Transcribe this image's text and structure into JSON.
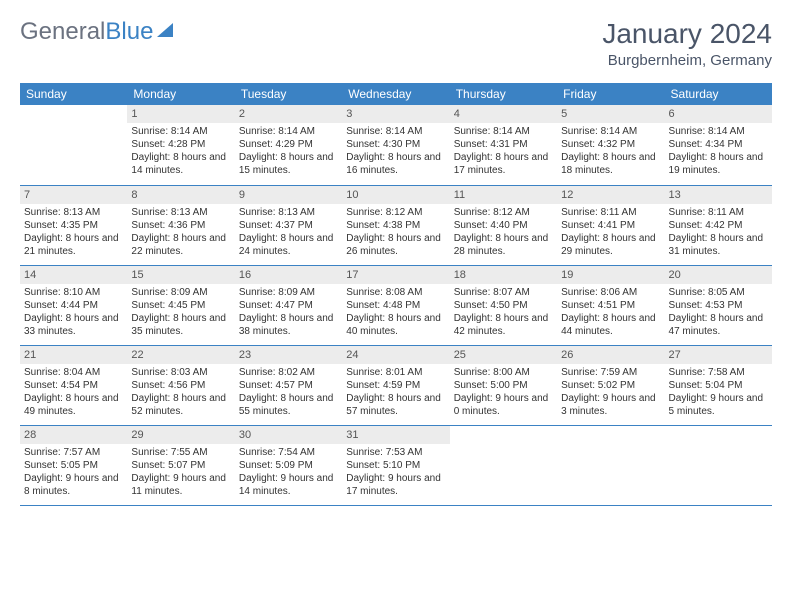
{
  "logo": {
    "word1": "General",
    "word2": "Blue"
  },
  "title": "January 2024",
  "subtitle": "Burgbernheim, Germany",
  "headers": [
    "Sunday",
    "Monday",
    "Tuesday",
    "Wednesday",
    "Thursday",
    "Friday",
    "Saturday"
  ],
  "colors": {
    "accent": "#3b82c4",
    "daynum_bg": "#ececec",
    "text": "#333333"
  },
  "weeks": [
    [
      {
        "n": "",
        "sr": "",
        "ss": "",
        "dl": ""
      },
      {
        "n": "1",
        "sr": "Sunrise: 8:14 AM",
        "ss": "Sunset: 4:28 PM",
        "dl": "Daylight: 8 hours and 14 minutes."
      },
      {
        "n": "2",
        "sr": "Sunrise: 8:14 AM",
        "ss": "Sunset: 4:29 PM",
        "dl": "Daylight: 8 hours and 15 minutes."
      },
      {
        "n": "3",
        "sr": "Sunrise: 8:14 AM",
        "ss": "Sunset: 4:30 PM",
        "dl": "Daylight: 8 hours and 16 minutes."
      },
      {
        "n": "4",
        "sr": "Sunrise: 8:14 AM",
        "ss": "Sunset: 4:31 PM",
        "dl": "Daylight: 8 hours and 17 minutes."
      },
      {
        "n": "5",
        "sr": "Sunrise: 8:14 AM",
        "ss": "Sunset: 4:32 PM",
        "dl": "Daylight: 8 hours and 18 minutes."
      },
      {
        "n": "6",
        "sr": "Sunrise: 8:14 AM",
        "ss": "Sunset: 4:34 PM",
        "dl": "Daylight: 8 hours and 19 minutes."
      }
    ],
    [
      {
        "n": "7",
        "sr": "Sunrise: 8:13 AM",
        "ss": "Sunset: 4:35 PM",
        "dl": "Daylight: 8 hours and 21 minutes."
      },
      {
        "n": "8",
        "sr": "Sunrise: 8:13 AM",
        "ss": "Sunset: 4:36 PM",
        "dl": "Daylight: 8 hours and 22 minutes."
      },
      {
        "n": "9",
        "sr": "Sunrise: 8:13 AM",
        "ss": "Sunset: 4:37 PM",
        "dl": "Daylight: 8 hours and 24 minutes."
      },
      {
        "n": "10",
        "sr": "Sunrise: 8:12 AM",
        "ss": "Sunset: 4:38 PM",
        "dl": "Daylight: 8 hours and 26 minutes."
      },
      {
        "n": "11",
        "sr": "Sunrise: 8:12 AM",
        "ss": "Sunset: 4:40 PM",
        "dl": "Daylight: 8 hours and 28 minutes."
      },
      {
        "n": "12",
        "sr": "Sunrise: 8:11 AM",
        "ss": "Sunset: 4:41 PM",
        "dl": "Daylight: 8 hours and 29 minutes."
      },
      {
        "n": "13",
        "sr": "Sunrise: 8:11 AM",
        "ss": "Sunset: 4:42 PM",
        "dl": "Daylight: 8 hours and 31 minutes."
      }
    ],
    [
      {
        "n": "14",
        "sr": "Sunrise: 8:10 AM",
        "ss": "Sunset: 4:44 PM",
        "dl": "Daylight: 8 hours and 33 minutes."
      },
      {
        "n": "15",
        "sr": "Sunrise: 8:09 AM",
        "ss": "Sunset: 4:45 PM",
        "dl": "Daylight: 8 hours and 35 minutes."
      },
      {
        "n": "16",
        "sr": "Sunrise: 8:09 AM",
        "ss": "Sunset: 4:47 PM",
        "dl": "Daylight: 8 hours and 38 minutes."
      },
      {
        "n": "17",
        "sr": "Sunrise: 8:08 AM",
        "ss": "Sunset: 4:48 PM",
        "dl": "Daylight: 8 hours and 40 minutes."
      },
      {
        "n": "18",
        "sr": "Sunrise: 8:07 AM",
        "ss": "Sunset: 4:50 PM",
        "dl": "Daylight: 8 hours and 42 minutes."
      },
      {
        "n": "19",
        "sr": "Sunrise: 8:06 AM",
        "ss": "Sunset: 4:51 PM",
        "dl": "Daylight: 8 hours and 44 minutes."
      },
      {
        "n": "20",
        "sr": "Sunrise: 8:05 AM",
        "ss": "Sunset: 4:53 PM",
        "dl": "Daylight: 8 hours and 47 minutes."
      }
    ],
    [
      {
        "n": "21",
        "sr": "Sunrise: 8:04 AM",
        "ss": "Sunset: 4:54 PM",
        "dl": "Daylight: 8 hours and 49 minutes."
      },
      {
        "n": "22",
        "sr": "Sunrise: 8:03 AM",
        "ss": "Sunset: 4:56 PM",
        "dl": "Daylight: 8 hours and 52 minutes."
      },
      {
        "n": "23",
        "sr": "Sunrise: 8:02 AM",
        "ss": "Sunset: 4:57 PM",
        "dl": "Daylight: 8 hours and 55 minutes."
      },
      {
        "n": "24",
        "sr": "Sunrise: 8:01 AM",
        "ss": "Sunset: 4:59 PM",
        "dl": "Daylight: 8 hours and 57 minutes."
      },
      {
        "n": "25",
        "sr": "Sunrise: 8:00 AM",
        "ss": "Sunset: 5:00 PM",
        "dl": "Daylight: 9 hours and 0 minutes."
      },
      {
        "n": "26",
        "sr": "Sunrise: 7:59 AM",
        "ss": "Sunset: 5:02 PM",
        "dl": "Daylight: 9 hours and 3 minutes."
      },
      {
        "n": "27",
        "sr": "Sunrise: 7:58 AM",
        "ss": "Sunset: 5:04 PM",
        "dl": "Daylight: 9 hours and 5 minutes."
      }
    ],
    [
      {
        "n": "28",
        "sr": "Sunrise: 7:57 AM",
        "ss": "Sunset: 5:05 PM",
        "dl": "Daylight: 9 hours and 8 minutes."
      },
      {
        "n": "29",
        "sr": "Sunrise: 7:55 AM",
        "ss": "Sunset: 5:07 PM",
        "dl": "Daylight: 9 hours and 11 minutes."
      },
      {
        "n": "30",
        "sr": "Sunrise: 7:54 AM",
        "ss": "Sunset: 5:09 PM",
        "dl": "Daylight: 9 hours and 14 minutes."
      },
      {
        "n": "31",
        "sr": "Sunrise: 7:53 AM",
        "ss": "Sunset: 5:10 PM",
        "dl": "Daylight: 9 hours and 17 minutes."
      },
      {
        "n": "",
        "sr": "",
        "ss": "",
        "dl": ""
      },
      {
        "n": "",
        "sr": "",
        "ss": "",
        "dl": ""
      },
      {
        "n": "",
        "sr": "",
        "ss": "",
        "dl": ""
      }
    ]
  ]
}
